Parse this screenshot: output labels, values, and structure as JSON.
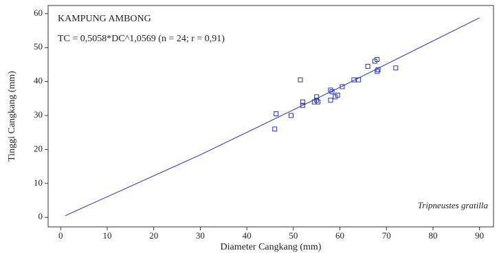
{
  "chart_data": {
    "type": "scatter",
    "title": "KAMPUNG AMBONG",
    "subtitle": "TC = 0,5058*DC^1,0569    (n = 24; r = 0,91)",
    "annotation": "Tripneustes gratilla",
    "x_label": "Diameter Cangkang (mm)",
    "y_label": "Tinggi Cangkang (mm)",
    "xlim": [
      -2.7,
      93
    ],
    "ylim": [
      -2.8,
      62.4
    ],
    "xticks": [
      0,
      10,
      20,
      30,
      40,
      50,
      60,
      70,
      80,
      90
    ],
    "yticks": [
      0,
      10,
      20,
      30,
      40,
      50,
      60
    ],
    "color": "#1f2fbf",
    "series": [
      {
        "x": [
          46,
          46.3,
          49.5,
          51.5,
          52,
          52,
          54.5,
          55,
          55,
          55.3,
          58,
          58,
          58.3,
          59,
          59.5,
          60.5,
          63,
          64,
          66,
          67.5,
          68,
          68,
          68.2,
          72
        ],
        "values": [
          26,
          30.5,
          30,
          40.5,
          33,
          34,
          34,
          35.5,
          34.5,
          34,
          34.5,
          37.5,
          37,
          35.5,
          36,
          38.5,
          40.5,
          40.5,
          44.5,
          46,
          46.5,
          43,
          43.5,
          44
        ]
      }
    ],
    "fit": {
      "x": [
        1,
        30,
        60,
        90
      ],
      "values": [
        0.51,
        18.42,
        38.31,
        58.8
      ]
    }
  }
}
